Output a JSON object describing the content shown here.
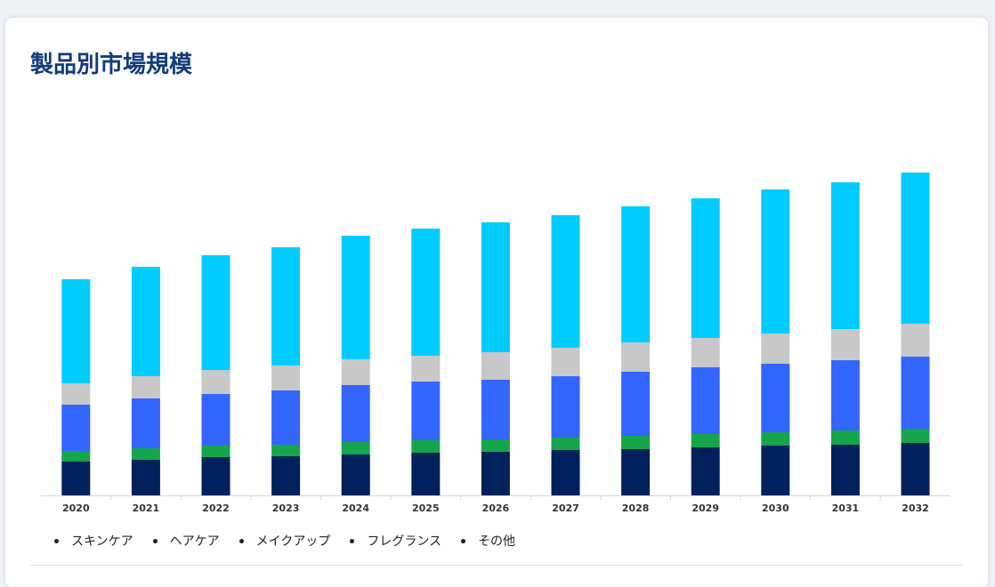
{
  "title": "製品別市場規模",
  "chart_data": {
    "type": "bar",
    "stacked": true,
    "categories": [
      "2020",
      "2021",
      "2022",
      "2023",
      "2024",
      "2025",
      "2026",
      "2027",
      "2028",
      "2029",
      "2030",
      "2031",
      "2032"
    ],
    "ylim": [
      0,
      380
    ],
    "series": [
      {
        "name": "その他",
        "color": "#00215c",
        "values": [
          38,
          40,
          43,
          44,
          46,
          48,
          49,
          51,
          52,
          54,
          56,
          57,
          59
        ]
      },
      {
        "name": "フレグランス",
        "color": "#15a54d",
        "values": [
          12,
          13,
          13,
          13,
          14,
          14,
          14,
          14,
          15,
          15,
          15,
          16,
          16
        ]
      },
      {
        "name": "メイクアップ",
        "color": "#3366ff",
        "values": [
          52,
          56,
          58,
          61,
          64,
          66,
          67,
          69,
          72,
          75,
          77,
          79,
          81
        ]
      },
      {
        "name": "ヘアケア",
        "color": "#c8c8c8",
        "values": [
          24,
          25,
          27,
          28,
          29,
          29,
          31,
          32,
          33,
          33,
          34,
          35,
          37
        ]
      },
      {
        "name": "スキンケア",
        "color": "#00ccff",
        "values": [
          117,
          123,
          129,
          133,
          139,
          143,
          146,
          149,
          153,
          157,
          162,
          165,
          170
        ]
      }
    ],
    "legend": {
      "position": "bottom",
      "items": [
        "スキンケア",
        "ヘアケア",
        "メイクアップ",
        "フレグランス",
        "その他"
      ]
    }
  }
}
